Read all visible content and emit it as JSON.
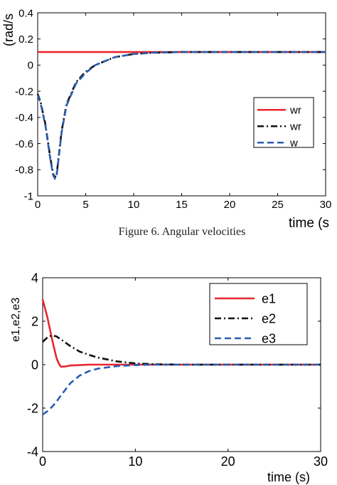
{
  "figure_caption": "Figure 6. Angular velocities",
  "chart_data": [
    {
      "type": "line",
      "ylabel": "(rad/s",
      "xlabel": "time (s",
      "xlim": [
        0,
        30
      ],
      "ylim": [
        -1,
        0.4
      ],
      "xticks": [
        0,
        5,
        10,
        15,
        20,
        25,
        30
      ],
      "xtick_labels": [
        "0",
        "5",
        "10",
        "15",
        "20",
        "25",
        "30"
      ],
      "yticks": [
        -1,
        -0.8,
        -0.6,
        -0.4,
        -0.2,
        0,
        0.2,
        0.4
      ],
      "ytick_labels": [
        "-1",
        "-0.8",
        "-0.6",
        "-0.4",
        "-0.2",
        "0",
        "0.2",
        "0.4"
      ],
      "grid": false,
      "legend_position": "right",
      "series": [
        {
          "name": "wr",
          "color": "#e8262d",
          "dash": "solid",
          "x": [
            0,
            30
          ],
          "y": [
            0.1,
            0.1
          ]
        },
        {
          "name": "wr",
          "color": "#111111",
          "dash": "dashdot",
          "x": [
            0,
            0.3,
            0.8,
            1.3,
            1.6,
            1.8,
            2.0,
            2.5,
            3.0,
            4.0,
            5.0,
            6.0,
            8.0,
            10.0,
            12.0,
            15.0,
            20.0,
            25.0,
            30.0
          ],
          "y": [
            -0.22,
            -0.28,
            -0.45,
            -0.7,
            -0.83,
            -0.86,
            -0.82,
            -0.5,
            -0.3,
            -0.13,
            -0.05,
            0.0,
            0.06,
            0.085,
            0.095,
            0.1,
            0.1,
            0.1,
            0.1
          ]
        },
        {
          "name": "w",
          "color": "#2a5db0",
          "dash": "dashed",
          "x": [
            0,
            0.3,
            0.8,
            1.3,
            1.6,
            1.8,
            2.0,
            2.5,
            3.0,
            4.0,
            5.0,
            6.0,
            8.0,
            10.0,
            12.0,
            15.0,
            20.0,
            25.0,
            30.0
          ],
          "y": [
            -0.23,
            -0.29,
            -0.46,
            -0.71,
            -0.84,
            -0.87,
            -0.83,
            -0.51,
            -0.31,
            -0.14,
            -0.06,
            0.0,
            0.06,
            0.085,
            0.095,
            0.1,
            0.1,
            0.1,
            0.1
          ]
        }
      ]
    },
    {
      "type": "line",
      "ylabel": "e1,e2,e3",
      "xlabel": "time (s)",
      "xlim": [
        0,
        30
      ],
      "ylim": [
        -4,
        4
      ],
      "xticks": [
        0,
        10,
        20,
        30
      ],
      "xtick_labels": [
        "0",
        "10",
        "20",
        "30"
      ],
      "yticks": [
        -4,
        -2,
        0,
        2,
        4
      ],
      "ytick_labels": [
        "-4",
        "-2",
        "0",
        "2",
        "4"
      ],
      "grid": false,
      "legend_position": "top-right",
      "series": [
        {
          "name": "e1",
          "color": "#e8262d",
          "dash": "solid",
          "x": [
            0,
            0.5,
            1.0,
            1.5,
            1.8,
            2.0,
            2.5,
            3.0,
            5.0,
            10.0,
            20.0,
            30.0
          ],
          "y": [
            3.0,
            2.2,
            1.2,
            0.3,
            0.0,
            -0.1,
            -0.08,
            -0.04,
            0.0,
            0.0,
            0.0,
            0.0
          ]
        },
        {
          "name": "e2",
          "color": "#111111",
          "dash": "dashdot",
          "x": [
            0,
            0.5,
            1.0,
            1.5,
            2.0,
            3.0,
            4.0,
            5.0,
            6.0,
            8.0,
            10.0,
            12.0,
            15.0,
            20.0,
            30.0
          ],
          "y": [
            1.05,
            1.25,
            1.35,
            1.3,
            1.15,
            0.85,
            0.6,
            0.45,
            0.32,
            0.15,
            0.06,
            0.02,
            0.0,
            0.0,
            0.0
          ]
        },
        {
          "name": "e3",
          "color": "#2a5db0",
          "dash": "dashed",
          "x": [
            0,
            0.5,
            1.0,
            1.5,
            2.0,
            3.0,
            4.0,
            5.0,
            6.0,
            8.0,
            10.0,
            12.0,
            15.0,
            20.0,
            30.0
          ],
          "y": [
            -2.3,
            -2.15,
            -1.95,
            -1.7,
            -1.4,
            -0.85,
            -0.5,
            -0.3,
            -0.18,
            -0.07,
            -0.02,
            0.0,
            0.0,
            0.0,
            0.0
          ]
        }
      ]
    }
  ]
}
